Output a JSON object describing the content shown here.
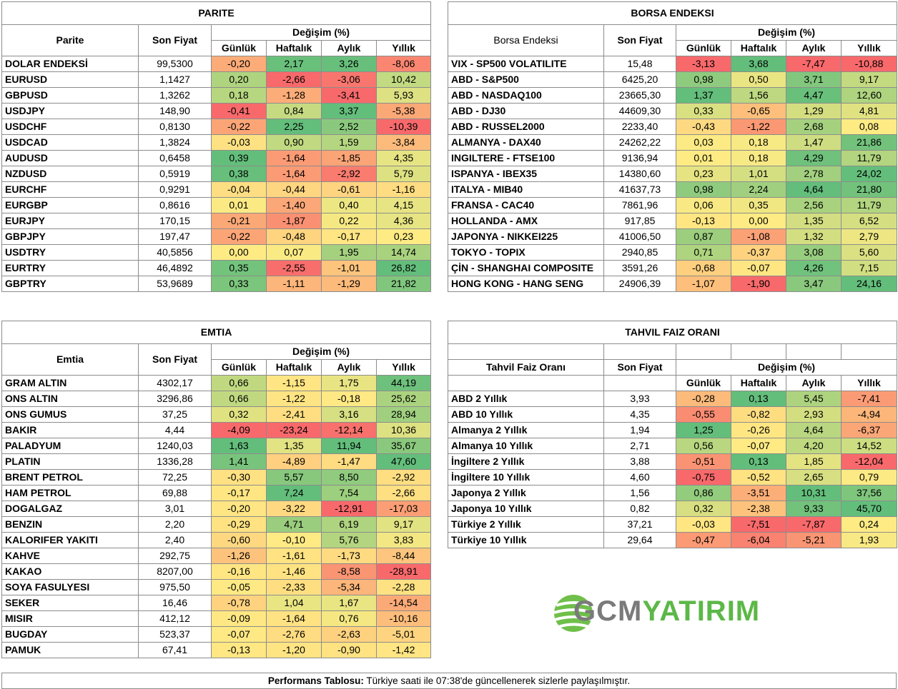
{
  "colors": {
    "red": "#f8696b",
    "orange": "#fbaa77",
    "yellow": "#ffeb84",
    "lightgreen": "#c5df80",
    "green": "#63be7b"
  },
  "parite": {
    "title": "PARITE",
    "col_name": "Parite",
    "col_price": "Son Fiyat",
    "col_change": "Değişim (%)",
    "col_d": "Günlük",
    "col_w": "Haftalık",
    "col_m": "Aylık",
    "col_y": "Yıllık",
    "rows": [
      {
        "name": "DOLAR ENDEKSİ",
        "price": "99,5300",
        "d": "-0,20",
        "w": "2,17",
        "m": "3,26",
        "y": "-8,06"
      },
      {
        "name": "EURUSD",
        "price": "1,1427",
        "d": "0,20",
        "w": "-2,66",
        "m": "-3,06",
        "y": "10,42"
      },
      {
        "name": "GBPUSD",
        "price": "1,3262",
        "d": "0,18",
        "w": "-1,28",
        "m": "-3,41",
        "y": "5,93"
      },
      {
        "name": "USDJPY",
        "price": "148,90",
        "d": "-0,41",
        "w": "0,84",
        "m": "3,37",
        "y": "-5,38"
      },
      {
        "name": "USDCHF",
        "price": "0,8130",
        "d": "-0,22",
        "w": "2,25",
        "m": "2,52",
        "y": "-10,39"
      },
      {
        "name": "USDCAD",
        "price": "1,3824",
        "d": "-0,03",
        "w": "0,90",
        "m": "1,59",
        "y": "-3,84"
      },
      {
        "name": "AUDUSD",
        "price": "0,6458",
        "d": "0,39",
        "w": "-1,64",
        "m": "-1,85",
        "y": "4,35"
      },
      {
        "name": "NZDUSD",
        "price": "0,5919",
        "d": "0,38",
        "w": "-1,64",
        "m": "-2,92",
        "y": "5,79"
      },
      {
        "name": "EURCHF",
        "price": "0,9291",
        "d": "-0,04",
        "w": "-0,44",
        "m": "-0,61",
        "y": "-1,16"
      },
      {
        "name": "EURGBP",
        "price": "0,8616",
        "d": "0,01",
        "w": "-1,40",
        "m": "0,40",
        "y": "4,15"
      },
      {
        "name": "EURJPY",
        "price": "170,15",
        "d": "-0,21",
        "w": "-1,87",
        "m": "0,22",
        "y": "4,36"
      },
      {
        "name": "GBPJPY",
        "price": "197,47",
        "d": "-0,22",
        "w": "-0,48",
        "m": "-0,17",
        "y": "0,23"
      },
      {
        "name": "USDTRY",
        "price": "40,5856",
        "d": "0,00",
        "w": "0,07",
        "m": "1,95",
        "y": "14,74"
      },
      {
        "name": "EURTRY",
        "price": "46,4892",
        "d": "0,35",
        "w": "-2,55",
        "m": "-1,01",
        "y": "26,82"
      },
      {
        "name": "GBPTRY",
        "price": "53,9689",
        "d": "0,33",
        "w": "-1,11",
        "m": "-1,29",
        "y": "21,82"
      }
    ]
  },
  "borsa": {
    "title": "BORSA ENDEKSI",
    "col_name": "Borsa Endeksi",
    "col_price": "Son Fiyat",
    "col_change": "Değişim (%)",
    "col_d": "Günlük",
    "col_w": "Haftalık",
    "col_m": "Aylık",
    "col_y": "Yıllık",
    "rows": [
      {
        "name": "VIX  - SP500 VOLATILITE",
        "price": "15,48",
        "d": "-3,13",
        "w": "3,68",
        "m": "-7,47",
        "y": "-10,88"
      },
      {
        "name": "ABD - S&P500",
        "price": "6425,20",
        "d": "0,98",
        "w": "0,50",
        "m": "3,71",
        "y": "9,17"
      },
      {
        "name": "ABD - NASDAQ100",
        "price": "23665,30",
        "d": "1,37",
        "w": "1,56",
        "m": "4,47",
        "y": "12,60"
      },
      {
        "name": "ABD - DJ30",
        "price": "44609,30",
        "d": "0,33",
        "w": "-0,65",
        "m": "1,29",
        "y": "4,81"
      },
      {
        "name": "ABD - RUSSEL2000",
        "price": "2233,40",
        "d": "-0,43",
        "w": "-1,22",
        "m": "2,68",
        "y": "0,08"
      },
      {
        "name": "ALMANYA - DAX40",
        "price": "24262,22",
        "d": "0,03",
        "w": "0,18",
        "m": "1,47",
        "y": "21,86"
      },
      {
        "name": "INGILTERE - FTSE100",
        "price": "9136,94",
        "d": "0,01",
        "w": "0,18",
        "m": "4,29",
        "y": "11,79"
      },
      {
        "name": "ISPANYA - IBEX35",
        "price": "14380,60",
        "d": "0,23",
        "w": "1,01",
        "m": "2,78",
        "y": "24,02"
      },
      {
        "name": "ITALYA - MIB40",
        "price": "41637,73",
        "d": "0,98",
        "w": "2,24",
        "m": "4,64",
        "y": "21,80"
      },
      {
        "name": "FRANSA - CAC40",
        "price": "7861,96",
        "d": "0,06",
        "w": "0,35",
        "m": "2,56",
        "y": "11,79"
      },
      {
        "name": "HOLLANDA - AMX",
        "price": "917,85",
        "d": "-0,13",
        "w": "0,00",
        "m": "1,35",
        "y": "6,52"
      },
      {
        "name": "JAPONYA - NIKKEI225",
        "price": "41006,50",
        "d": "0,87",
        "w": "-1,08",
        "m": "1,32",
        "y": "2,79"
      },
      {
        "name": "TOKYO - TOPIX",
        "price": "2940,85",
        "d": "0,71",
        "w": "-0,37",
        "m": "3,08",
        "y": "5,60"
      },
      {
        "name": "ÇİN - SHANGHAI COMPOSITE",
        "price": "3591,26",
        "d": "-0,68",
        "w": "-0,07",
        "m": "4,26",
        "y": "7,15"
      },
      {
        "name": "HONG KONG - HANG SENG",
        "price": "24906,39",
        "d": "-1,07",
        "w": "-1,90",
        "m": "3,47",
        "y": "24,16"
      }
    ]
  },
  "emtia": {
    "title": "EMTIA",
    "col_name": "Emtia",
    "col_price": "Son Fiyat",
    "col_change": "Değişim (%)",
    "col_d": "Günlük",
    "col_w": "Haftalık",
    "col_m": "Aylık",
    "col_y": "Yıllık",
    "rows": [
      {
        "name": "GRAM ALTIN",
        "price": "4302,17",
        "d": "0,66",
        "w": "-1,15",
        "m": "1,75",
        "y": "44,19"
      },
      {
        "name": "ONS ALTIN",
        "price": "3296,86",
        "d": "0,66",
        "w": "-1,22",
        "m": "-0,18",
        "y": "25,62"
      },
      {
        "name": "ONS GUMUS",
        "price": "37,25",
        "d": "0,32",
        "w": "-2,41",
        "m": "3,16",
        "y": "28,94"
      },
      {
        "name": "BAKIR",
        "price": "4,44",
        "d": "-4,09",
        "w": "-23,24",
        "m": "-12,14",
        "y": "10,36"
      },
      {
        "name": "PALADYUM",
        "price": "1240,03",
        "d": "1,63",
        "w": "1,35",
        "m": "11,94",
        "y": "35,67"
      },
      {
        "name": "PLATIN",
        "price": "1336,28",
        "d": "1,41",
        "w": "-4,89",
        "m": "-1,47",
        "y": "47,60"
      },
      {
        "name": "BRENT PETROL",
        "price": "72,25",
        "d": "-0,30",
        "w": "5,57",
        "m": "8,50",
        "y": "-2,92"
      },
      {
        "name": "HAM PETROL",
        "price": "69,88",
        "d": "-0,17",
        "w": "7,24",
        "m": "7,54",
        "y": "-2,66"
      },
      {
        "name": "DOGALGAZ",
        "price": "3,01",
        "d": "-0,20",
        "w": "-3,22",
        "m": "-12,91",
        "y": "-17,03"
      },
      {
        "name": "BENZIN",
        "price": "2,20",
        "d": "-0,29",
        "w": "4,71",
        "m": "6,19",
        "y": "9,17"
      },
      {
        "name": "KALORIFER YAKITI",
        "price": "2,40",
        "d": "-0,60",
        "w": "-0,10",
        "m": "5,76",
        "y": "3,83"
      },
      {
        "name": "KAHVE",
        "price": "292,75",
        "d": "-1,26",
        "w": "-1,61",
        "m": "-1,73",
        "y": "-8,44"
      },
      {
        "name": "KAKAO",
        "price": "8207,00",
        "d": "-0,16",
        "w": "-1,46",
        "m": "-8,58",
        "y": "-28,91"
      },
      {
        "name": "SOYA FASULYESI",
        "price": "975,50",
        "d": "-0,05",
        "w": "-2,33",
        "m": "-5,34",
        "y": "-2,28"
      },
      {
        "name": "SEKER",
        "price": "16,46",
        "d": "-0,78",
        "w": "1,04",
        "m": "1,67",
        "y": "-14,54"
      },
      {
        "name": "MISIR",
        "price": "412,12",
        "d": "-0,09",
        "w": "-1,64",
        "m": "0,76",
        "y": "-10,16"
      },
      {
        "name": "BUGDAY",
        "price": "523,37",
        "d": "-0,07",
        "w": "-2,76",
        "m": "-2,63",
        "y": "-5,01"
      },
      {
        "name": "PAMUK",
        "price": "67,41",
        "d": "-0,13",
        "w": "-1,20",
        "m": "-0,90",
        "y": "-1,42"
      }
    ]
  },
  "tahvil": {
    "title": "TAHVIL FAIZ ORANI",
    "col_name": "Tahvil Faiz Oranı",
    "col_price": "Son Fiyat",
    "col_change": "Değişim (%)",
    "col_d": "Günlük",
    "col_w": "Haftalık",
    "col_m": "Aylık",
    "col_y": "Yıllık",
    "rows": [
      {
        "name": "ABD 2 Yıllık",
        "price": "3,93",
        "d": "-0,28",
        "w": "0,13",
        "m": "5,45",
        "y": "-7,41"
      },
      {
        "name": "ABD 10 Yıllık",
        "price": "4,35",
        "d": "-0,55",
        "w": "-0,82",
        "m": "2,93",
        "y": "-4,94"
      },
      {
        "name": "Almanya 2 Yıllık",
        "price": "1,94",
        "d": "1,25",
        "w": "-0,26",
        "m": "4,64",
        "y": "-6,37"
      },
      {
        "name": "Almanya 10 Yıllık",
        "price": "2,71",
        "d": "0,56",
        "w": "-0,07",
        "m": "4,20",
        "y": "14,52"
      },
      {
        "name": "İngiltere 2 Yıllık",
        "price": "3,88",
        "d": "-0,51",
        "w": "0,13",
        "m": "1,85",
        "y": "-12,04"
      },
      {
        "name": "İngiltere 10 Yıllık",
        "price": "4,60",
        "d": "-0,75",
        "w": "-0,52",
        "m": "2,65",
        "y": "0,79"
      },
      {
        "name": "Japonya 2 Yıllık",
        "price": "1,56",
        "d": "0,86",
        "w": "-3,51",
        "m": "10,31",
        "y": "37,56"
      },
      {
        "name": "Japonya 10 Yıllık",
        "price": "0,82",
        "d": "0,32",
        "w": "-2,38",
        "m": "9,33",
        "y": "45,70"
      },
      {
        "name": "Türkiye 2 Yıllık",
        "price": "37,21",
        "d": "-0,03",
        "w": "-7,51",
        "m": "-7,87",
        "y": "0,24"
      },
      {
        "name": "Türkiye 10 Yıllık",
        "price": "29,64",
        "d": "-0,47",
        "w": "-6,04",
        "m": "-5,21",
        "y": "1,93"
      }
    ]
  },
  "logo": {
    "text_a": "GCM",
    "text_b": "YATIRIM"
  },
  "footer": {
    "label": "Performans Tablosu:",
    "text": " Türkiye saati ile 07:38'de güncellenerek sizlerle paylaşılmıştır."
  }
}
